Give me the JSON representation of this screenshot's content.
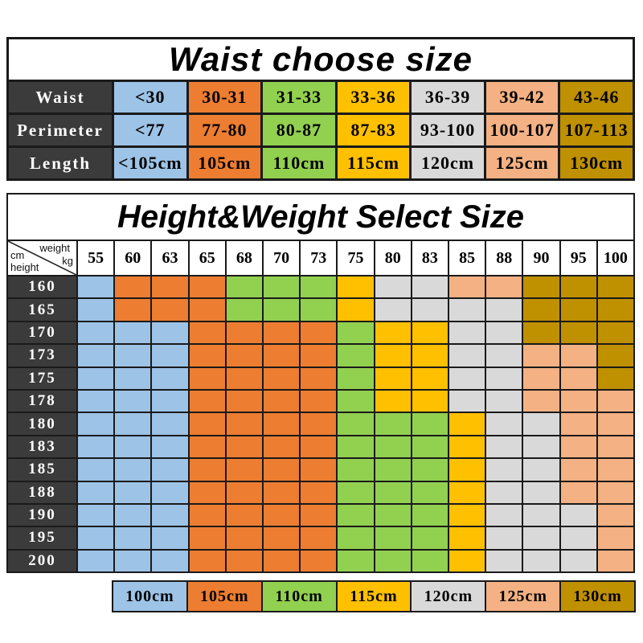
{
  "chart_data": [
    {
      "type": "table",
      "title": "Waist choose size",
      "row_labels": [
        "Waist",
        "Perimeter",
        "Length"
      ],
      "rows": [
        [
          "<30",
          "30-31",
          "31-33",
          "33-36",
          "36-39",
          "39-42",
          "43-46"
        ],
        [
          "<77",
          "77-80",
          "80-87",
          "87-83",
          "93-100",
          "100-107",
          "107-113"
        ],
        [
          "<105cm",
          "105cm",
          "110cm",
          "115cm",
          "120cm",
          "125cm",
          "130cm"
        ]
      ],
      "column_colors": [
        "#9DC3E6",
        "#ED7D31",
        "#92D050",
        "#FFC000",
        "#D9D9D9",
        "#F4B183",
        "#BF9000"
      ]
    },
    {
      "type": "heatmap",
      "title": "Height&Weight Select Size",
      "xlabel": "weight kg",
      "ylabel": "height cm",
      "x": [
        "55",
        "60",
        "63",
        "65",
        "68",
        "70",
        "73",
        "75",
        "80",
        "83",
        "85",
        "88",
        "90",
        "95",
        "100"
      ],
      "y": [
        "160",
        "165",
        "170",
        "173",
        "175",
        "178",
        "180",
        "183",
        "185",
        "188",
        "190",
        "195",
        "200"
      ],
      "cells": [
        "BOOOGGGYSSPPDDD",
        "BOOOGGGYSSSSDDD",
        "BBBOOOOGYYSSDDD",
        "BBBOOOOGYYSSPPD",
        "BBBOOOOGYYSSPPD",
        "BBBOOOOGYYSSPPP",
        "BBBOOOOGGGYSSPP",
        "BBBOOOOGGGYSSPP",
        "BBBOOOOGGGYSSPP",
        "BBBOOOOGGGYSSPP",
        "BBBOOOOGGGYSSSP",
        "BBBOOOOGGGYSSSP",
        "BBBOOOOGGGYSSSP"
      ],
      "code_to_size": {
        "B": "100cm",
        "O": "105cm",
        "G": "110cm",
        "Y": "115cm",
        "S": "120cm",
        "P": "125cm",
        "D": "130cm"
      },
      "code_to_color": {
        "B": "#9DC3E6",
        "O": "#ED7D31",
        "G": "#92D050",
        "Y": "#FFC000",
        "S": "#D9D9D9",
        "P": "#F4B183",
        "D": "#BF9000"
      },
      "legend": [
        {
          "label": "100cm",
          "color": "#9DC3E6"
        },
        {
          "label": "105cm",
          "color": "#ED7D31"
        },
        {
          "label": "110cm",
          "color": "#92D050"
        },
        {
          "label": "115cm",
          "color": "#FFC000"
        },
        {
          "label": "120cm",
          "color": "#D9D9D9"
        },
        {
          "label": "125cm",
          "color": "#F4B183"
        },
        {
          "label": "130cm",
          "color": "#BF9000"
        }
      ],
      "legend_position": "bottom"
    }
  ],
  "corner": {
    "weight": "weight",
    "kg": "kg",
    "cm": "cm",
    "height": "height"
  },
  "theme": {
    "label_bg": "#3B3B3B",
    "label_text": "#FFFFFF",
    "grid_line": "#1A1A1A",
    "page_bg": "#FFFFFF"
  }
}
